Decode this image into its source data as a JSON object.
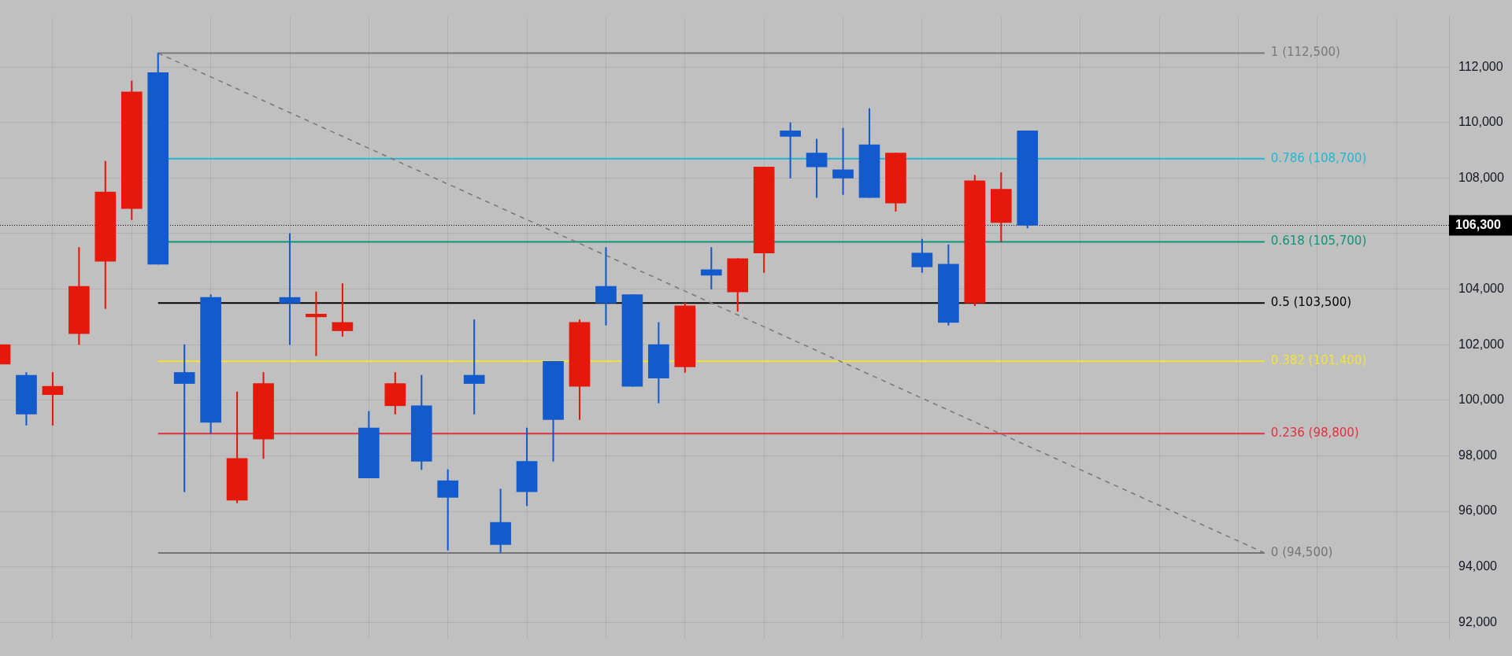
{
  "chart_data": {
    "type": "candlestick",
    "categories": [
      null,
      null,
      null,
      null,
      null,
      null,
      null,
      null,
      null,
      null,
      null,
      null,
      null,
      null,
      null,
      null,
      null,
      null,
      null,
      null,
      null,
      null,
      null,
      null,
      null,
      null,
      null,
      null,
      null,
      null,
      null,
      null,
      null,
      null,
      null,
      null,
      null,
      null,
      null,
      null,
      null,
      null,
      null,
      null,
      null,
      null,
      null,
      null,
      null,
      null,
      null,
      null,
      null,
      null,
      null,
      null
    ],
    "ohlc": [
      [
        101300,
        102000,
        101300,
        102000
      ],
      [
        100900,
        101000,
        99100,
        99500
      ],
      [
        100200,
        101000,
        99100,
        100500
      ],
      [
        102400,
        105500,
        102000,
        104100
      ],
      [
        105000,
        108600,
        103300,
        107500
      ],
      [
        106900,
        111500,
        106500,
        111100
      ],
      [
        111800,
        112500,
        104900,
        104900
      ],
      [
        101000,
        102000,
        96700,
        100600
      ],
      [
        103700,
        103800,
        98800,
        99200
      ],
      [
        96400,
        100300,
        96300,
        97900
      ],
      [
        98600,
        101000,
        97900,
        100600
      ],
      [
        103700,
        106000,
        102000,
        103500
      ],
      [
        103000,
        103900,
        101600,
        103100
      ],
      [
        102500,
        104200,
        102300,
        102800
      ],
      [
        99000,
        99600,
        97200,
        97200
      ],
      [
        99800,
        101000,
        99500,
        100600
      ],
      [
        99800,
        100900,
        97500,
        97800
      ],
      [
        97100,
        97500,
        94600,
        96500
      ],
      [
        100900,
        102900,
        99500,
        100600
      ],
      [
        95600,
        96800,
        94500,
        94800
      ],
      [
        97800,
        99000,
        96200,
        96700
      ],
      [
        101400,
        101400,
        97800,
        99300
      ],
      [
        100500,
        102900,
        99300,
        102800
      ],
      [
        104100,
        105500,
        102700,
        103500
      ],
      [
        103800,
        103800,
        100500,
        100500
      ],
      [
        102000,
        102800,
        99900,
        100800
      ],
      [
        101200,
        103500,
        101000,
        103400
      ],
      [
        104700,
        105500,
        104000,
        104500
      ],
      [
        103900,
        105100,
        103200,
        105100
      ],
      [
        105300,
        108400,
        104600,
        108400
      ],
      [
        109700,
        110000,
        108000,
        109500
      ],
      [
        108900,
        109400,
        107300,
        108400
      ],
      [
        108300,
        109800,
        107400,
        108000
      ],
      [
        109200,
        110500,
        107300,
        107300
      ],
      [
        107100,
        108900,
        106800,
        108900
      ],
      [
        105300,
        105800,
        104600,
        104800
      ],
      [
        104900,
        105600,
        102700,
        102800
      ],
      [
        103500,
        108100,
        103400,
        107900
      ],
      [
        106400,
        108200,
        105700,
        107600
      ],
      [
        109700,
        109700,
        106200,
        106300
      ],
      null,
      null,
      null,
      null,
      null,
      null,
      null,
      null,
      null,
      null,
      null,
      null,
      null,
      null,
      null,
      null
    ],
    "colors": [
      "#e4190b",
      "#135acd",
      "#e4190b",
      "#e4190b",
      "#e4190b",
      "#e4190b",
      "#135acd",
      "#135acd",
      "#135acd",
      "#e4190b",
      "#e4190b",
      "#135acd",
      "#e4190b",
      "#e4190b",
      "#135acd",
      "#e4190b",
      "#135acd",
      "#135acd",
      "#135acd",
      "#135acd",
      "#135acd",
      "#135acd",
      "#e4190b",
      "#135acd",
      "#135acd",
      "#135acd",
      "#e4190b",
      "#135acd",
      "#e4190b",
      "#e4190b",
      "#135acd",
      "#135acd",
      "#135acd",
      "#135acd",
      "#e4190b",
      "#135acd",
      "#135acd",
      "#e4190b",
      "#e4190b",
      "#135acd",
      null,
      null,
      null,
      null,
      null,
      null,
      null,
      null,
      null,
      null,
      null,
      null,
      null,
      null,
      null,
      null
    ],
    "series": [
      {
        "type": "line",
        "color": "#7a7a7a",
        "line_style": "dashed",
        "values": [
          null,
          null,
          null,
          null,
          null,
          null,
          112500,
          null,
          null,
          null,
          null,
          null,
          null,
          null,
          null,
          null,
          null,
          null,
          null,
          null,
          null,
          null,
          null,
          null,
          null,
          null,
          null,
          null,
          null,
          null,
          null,
          null,
          null,
          null,
          null,
          null,
          null,
          null,
          null,
          null,
          null,
          null,
          null,
          null,
          null,
          null,
          null,
          null,
          94500,
          null,
          null,
          null,
          null,
          null,
          null,
          null
        ]
      }
    ],
    "ref_lines": [
      {
        "axis": "y",
        "value": 112500,
        "label": "1 (112,500)",
        "color": "#787878",
        "line_style": "solid"
      },
      {
        "axis": "y",
        "value": 108700,
        "label": "0.786 (108,700)",
        "color": "#1fb8d0",
        "line_style": "solid"
      },
      {
        "axis": "y",
        "value": 105700,
        "label": "0.618 (105,700)",
        "color": "#0e9478",
        "line_style": "solid"
      },
      {
        "axis": "y",
        "value": 103500,
        "label": "0.5 (103,500)",
        "color": "#000000",
        "line_style": "solid"
      },
      {
        "axis": "y",
        "value": 101400,
        "label": "0.382 (101,400)",
        "color": "#f2e33a",
        "line_style": "solid"
      },
      {
        "axis": "y",
        "value": 98800,
        "label": "0.236 (98,800)",
        "color": "#e0303f",
        "line_style": "solid"
      },
      {
        "axis": "y",
        "value": 94500,
        "label": "0 (94,500)",
        "color": "#747474",
        "line_style": "solid"
      },
      {
        "axis": "y",
        "value": 106300,
        "label": "106,300",
        "color": "#000000",
        "line_style": "dotted"
      }
    ],
    "ylim": [
      91400,
      113800
    ],
    "yticks": [
      {
        "value": 92000,
        "label": "92,000"
      },
      {
        "value": 94000,
        "label": "94,000"
      },
      {
        "value": 96000,
        "label": "96,000"
      },
      {
        "value": 98000,
        "label": "98,000"
      },
      {
        "value": 100000,
        "label": "100,000"
      },
      {
        "value": 102000,
        "label": "102,000"
      },
      {
        "value": 104000,
        "label": "104,000"
      },
      {
        "value": 106000,
        "label": null
      },
      {
        "value": 108000,
        "label": "108,000"
      },
      {
        "value": 110000,
        "label": "110,000"
      },
      {
        "value": 112000,
        "label": "112,000"
      }
    ],
    "grid": true,
    "tick_labels": "y"
  }
}
